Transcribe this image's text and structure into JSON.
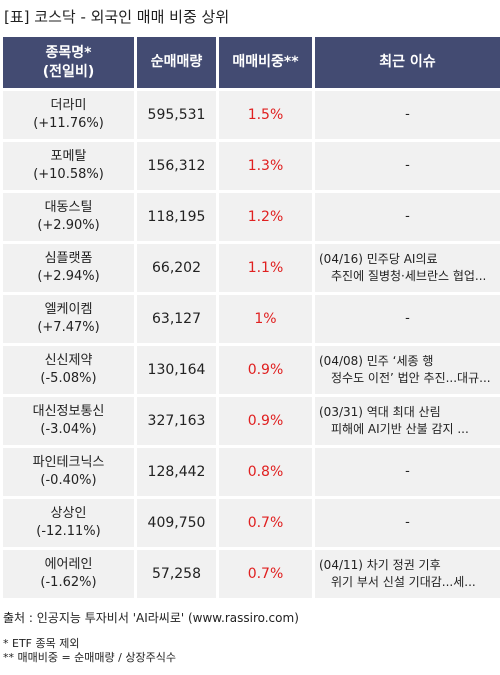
{
  "title": "[표] 코스닥 - 외국인 매매 비중 상위",
  "headers": {
    "name_line1": "종목명*",
    "name_line2": "(전일비)",
    "volume": "순매매량",
    "ratio": "매매비중**",
    "issue": "최근 이슈"
  },
  "rows": [
    {
      "name": "더라미",
      "change": "(+11.76%)",
      "volume": "595,531",
      "ratio": "1.5%",
      "issue1": "-",
      "issue2": ""
    },
    {
      "name": "포메탈",
      "change": "(+10.58%)",
      "volume": "156,312",
      "ratio": "1.3%",
      "issue1": "-",
      "issue2": ""
    },
    {
      "name": "대동스틸",
      "change": "(+2.90%)",
      "volume": "118,195",
      "ratio": "1.2%",
      "issue1": "-",
      "issue2": ""
    },
    {
      "name": "심플랫폼",
      "change": "(+2.94%)",
      "volume": "66,202",
      "ratio": "1.1%",
      "issue1": "(04/16) 민주당 AI의료",
      "issue2": "추진에 질병청·세브란스 협업..."
    },
    {
      "name": "엘케이켐",
      "change": "(+7.47%)",
      "volume": "63,127",
      "ratio": "1%",
      "issue1": "-",
      "issue2": ""
    },
    {
      "name": "신신제약",
      "change": "(-5.08%)",
      "volume": "130,164",
      "ratio": "0.9%",
      "issue1": "(04/08) 민주 ‘세종 행",
      "issue2": "정수도 이전’ 법안 추진...대규..."
    },
    {
      "name": "대신정보통신",
      "change": "(-3.04%)",
      "volume": "327,163",
      "ratio": "0.9%",
      "issue1": "(03/31) 역대 최대 산림",
      "issue2": "피해에 AI기반 산불 감지 ..."
    },
    {
      "name": "파인테크닉스",
      "change": "(-0.40%)",
      "volume": "128,442",
      "ratio": "0.8%",
      "issue1": "-",
      "issue2": ""
    },
    {
      "name": "상상인",
      "change": "(-12.11%)",
      "volume": "409,750",
      "ratio": "0.7%",
      "issue1": "-",
      "issue2": ""
    },
    {
      "name": "에어레인",
      "change": "(-1.62%)",
      "volume": "57,258",
      "ratio": "0.7%",
      "issue1": "(04/11) 차기 정권 기후",
      "issue2": "위기 부서 신설 기대감...세..."
    }
  ],
  "footer": {
    "source": "출처 : 인공지능 투자비서 'AI라씨로' (www.rassiro.com)",
    "note1": "* ETF 종목 제외",
    "note2": "** 매매비중 = 순매매량 / 상장주식수"
  },
  "colors": {
    "header_bg": "#434b72",
    "cell_bg": "#f1f1f1",
    "ratio_text": "#e02020"
  }
}
